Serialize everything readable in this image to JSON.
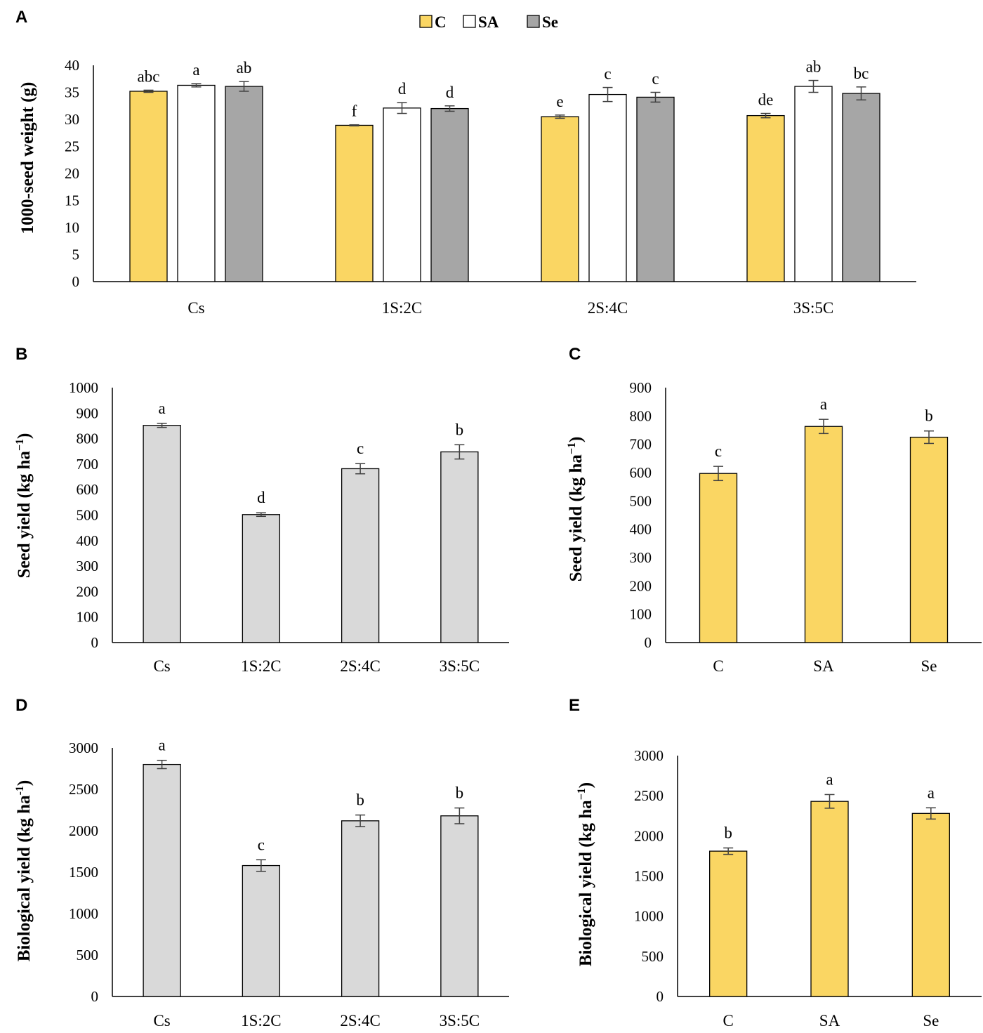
{
  "colors": {
    "C": "#FAD663",
    "SA": "#FFFFFF",
    "Se": "#A6A6A6",
    "gray_bar": "#D9D9D9",
    "yellow_bar": "#FAD663",
    "axis": "#000000",
    "error_bar": "#404040"
  },
  "chart_data": [
    {
      "panel": "A",
      "type": "bar",
      "title": "",
      "xlabel": "",
      "ylabel": "1000-seed weight (g)",
      "ylim": [
        0,
        40
      ],
      "yticks": [
        0,
        5,
        10,
        15,
        20,
        25,
        30,
        35,
        40
      ],
      "categories": [
        "Cs",
        "1S:2C",
        "2S:4C",
        "3S:5C"
      ],
      "legend": {
        "placement": "top-center",
        "entries": [
          "C",
          "SA",
          "Se"
        ]
      },
      "series": [
        {
          "name": "C",
          "color_key": "C",
          "values": [
            35.2,
            28.9,
            30.5,
            30.7
          ],
          "errors": [
            0.2,
            0.1,
            0.3,
            0.4
          ],
          "letters": [
            "abc",
            "f",
            "e",
            "de"
          ]
        },
        {
          "name": "SA",
          "color_key": "SA",
          "values": [
            36.3,
            32.1,
            34.6,
            36.1
          ],
          "errors": [
            0.3,
            1.0,
            1.3,
            1.1
          ],
          "letters": [
            "a",
            "d",
            "c",
            "ab"
          ]
        },
        {
          "name": "Se",
          "color_key": "Se",
          "values": [
            36.1,
            32.0,
            34.1,
            34.8
          ],
          "errors": [
            0.9,
            0.5,
            0.9,
            1.2
          ],
          "letters": [
            "ab",
            "d",
            "c",
            "bc"
          ]
        }
      ]
    },
    {
      "panel": "B",
      "type": "bar",
      "title": "",
      "xlabel": "",
      "ylabel": "Seed yield (kg ha",
      "ylabel_sup": "−1",
      "ylabel_end": ")",
      "ylim": [
        0,
        1000
      ],
      "yticks": [
        0,
        100,
        200,
        300,
        400,
        500,
        600,
        700,
        800,
        900,
        1000
      ],
      "categories": [
        "Cs",
        "1S:2C",
        "2S:4C",
        "3S:5C"
      ],
      "series": [
        {
          "name": "Seed yield",
          "color_key": "gray_bar",
          "values": [
            852,
            502,
            682,
            748
          ],
          "errors": [
            8,
            7,
            20,
            28
          ],
          "letters": [
            "a",
            "d",
            "c",
            "b"
          ]
        }
      ]
    },
    {
      "panel": "C",
      "type": "bar",
      "title": "",
      "xlabel": "",
      "ylabel": "Seed yield (kg ha",
      "ylabel_sup": "−1",
      "ylabel_end": ")",
      "ylim": [
        0,
        900
      ],
      "yticks": [
        0,
        100,
        200,
        300,
        400,
        500,
        600,
        700,
        800,
        900
      ],
      "categories": [
        "C",
        "SA",
        "Se"
      ],
      "series": [
        {
          "name": "Seed yield",
          "color_key": "yellow_bar",
          "values": [
            597,
            763,
            725
          ],
          "errors": [
            25,
            25,
            22
          ],
          "letters": [
            "c",
            "a",
            "b"
          ]
        }
      ]
    },
    {
      "panel": "D",
      "type": "bar",
      "title": "",
      "xlabel": "",
      "ylabel": "Biological yield (kg ha",
      "ylabel_sup": "-1",
      "ylabel_end": ")",
      "ylim": [
        0,
        3000
      ],
      "yticks": [
        0,
        500,
        1000,
        1500,
        2000,
        2500,
        3000
      ],
      "categories": [
        "Cs",
        "1S:2C",
        "2S:4C",
        "3S:5C"
      ],
      "series": [
        {
          "name": "Biological yield",
          "color_key": "gray_bar",
          "values": [
            2800,
            1580,
            2120,
            2180
          ],
          "errors": [
            50,
            70,
            70,
            95
          ],
          "letters": [
            "a",
            "c",
            "b",
            "b"
          ]
        }
      ]
    },
    {
      "panel": "E",
      "type": "bar",
      "title": "",
      "xlabel": "",
      "ylabel": "Biological yield (kg ha",
      "ylabel_sup": "−1",
      "ylabel_end": ")",
      "ylim": [
        0,
        3000
      ],
      "yticks": [
        0,
        500,
        1000,
        1500,
        2000,
        2500,
        3000
      ],
      "categories": [
        "C",
        "SA",
        "Se"
      ],
      "series": [
        {
          "name": "Biological yield",
          "color_key": "yellow_bar",
          "values": [
            1810,
            2430,
            2280
          ],
          "errors": [
            40,
            85,
            70
          ],
          "letters": [
            "b",
            "a",
            "a"
          ]
        }
      ]
    }
  ]
}
